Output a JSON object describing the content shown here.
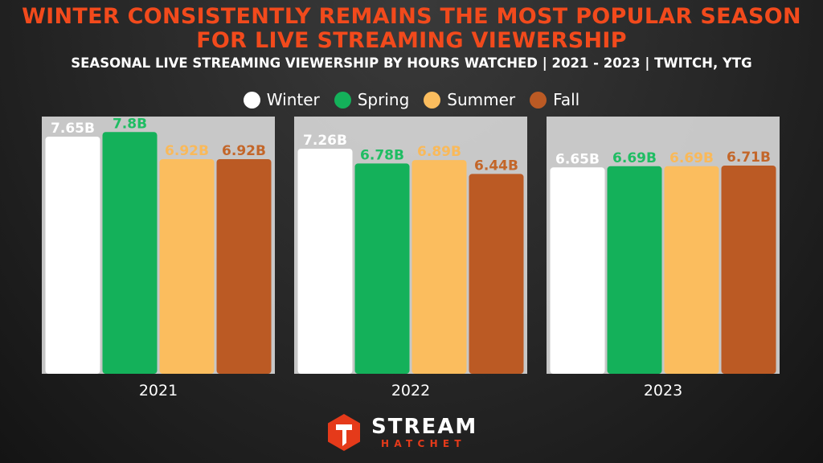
{
  "chart_data": {
    "type": "bar",
    "title": "WINTER CONSISTENTLY REMAINS THE MOST POPULAR SEASON FOR LIVE STREAMING VIEWERSHIP",
    "subtitle": "SEASONAL LIVE STREAMING VIEWERSHIP BY HOURS WATCHED | 2021 - 2023 | TWITCH, YTG",
    "xlabel": "",
    "ylabel": "",
    "ylim": [
      0,
      7.8
    ],
    "grid": false,
    "legend_position": "top-center",
    "categories": [
      "2021",
      "2022",
      "2023"
    ],
    "series": [
      {
        "name": "Winter",
        "color": "#ffffff",
        "label_color": "#ffffff",
        "values": [
          7.65,
          7.26,
          6.65
        ],
        "labels": [
          "7.65B",
          "7.26B",
          "6.65B"
        ]
      },
      {
        "name": "Spring",
        "color": "#14b15a",
        "label_color": "#1fbd63",
        "values": [
          7.8,
          6.78,
          6.69
        ],
        "labels": [
          "7.8B",
          "6.78B",
          "6.69B"
        ]
      },
      {
        "name": "Summer",
        "color": "#fbbd5e",
        "label_color": "#f9b95a",
        "values": [
          6.92,
          6.89,
          6.69
        ],
        "labels": [
          "6.92B",
          "6.89B",
          "6.69B"
        ]
      },
      {
        "name": "Fall",
        "color": "#bb5a24",
        "label_color": "#c36629",
        "values": [
          6.92,
          6.44,
          6.71
        ],
        "labels": [
          "6.92B",
          "6.44B",
          "6.71B"
        ]
      }
    ]
  },
  "logo": {
    "word": "STREAM",
    "sub": "HATCHET",
    "icon": "hatchet-logo-icon",
    "color": "#e53a1a"
  },
  "colors": {
    "title": "#f24a1c",
    "panel": "#d9d9d9"
  }
}
